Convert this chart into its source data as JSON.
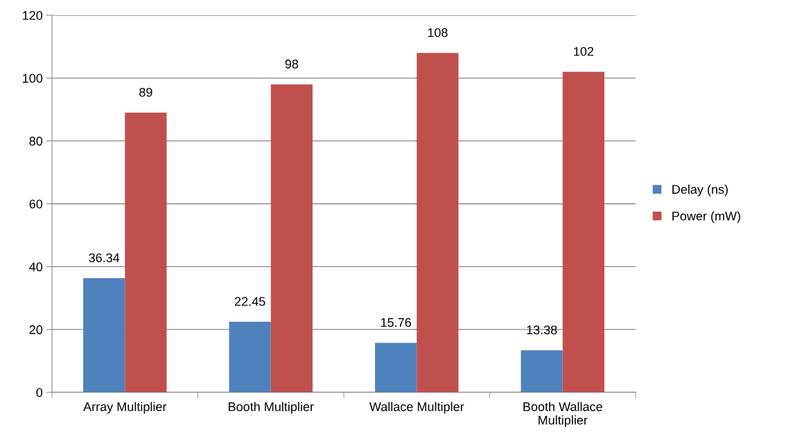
{
  "chart_data": {
    "type": "bar",
    "categories": [
      "Array Multiplier",
      "Booth Multiplier",
      "Wallace Multipler",
      "Booth Wallace Multiplier"
    ],
    "series": [
      {
        "name": "Delay (ns)",
        "color": "#4f81bd",
        "values": [
          36.34,
          22.45,
          15.76,
          13.38
        ]
      },
      {
        "name": "Power (mW)",
        "color": "#c0504d",
        "values": [
          89,
          98,
          108,
          102
        ]
      }
    ],
    "ylim": [
      0,
      120
    ],
    "yticks": [
      0,
      20,
      40,
      60,
      80,
      100,
      120
    ],
    "grid": "y",
    "legend": "right",
    "data_labels": true
  }
}
